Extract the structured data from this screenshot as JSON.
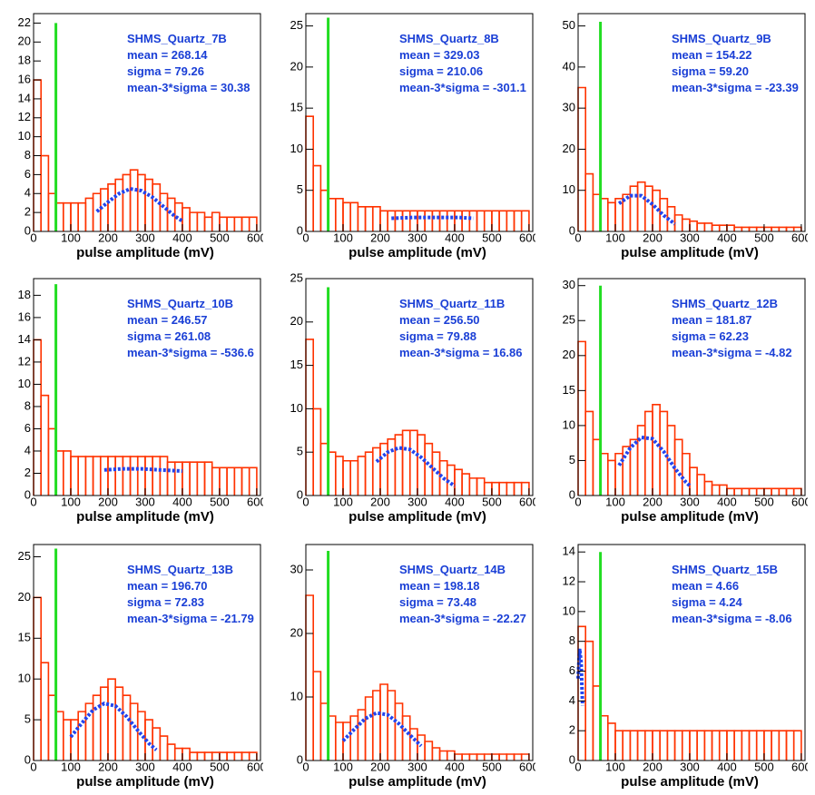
{
  "chart_data": [
    {
      "type": "histogram",
      "title": "SHMS_Quartz_7B",
      "annotations": [
        "mean = 268.14",
        "sigma = 79.26",
        "mean-3*sigma = 30.38"
      ],
      "xlabel": "pulse amplitude (mV)",
      "color": "#ff3300",
      "bins": [
        0,
        20,
        40,
        60,
        80,
        100,
        120,
        140,
        160,
        180,
        200,
        220,
        240,
        260,
        280,
        300,
        320,
        340,
        360,
        380,
        400,
        420,
        440,
        460,
        480,
        500,
        520,
        540,
        560,
        580,
        600
      ],
      "values": [
        16,
        8,
        4,
        3,
        3,
        3,
        3,
        3.5,
        4,
        4.5,
        5,
        5.5,
        6,
        6.5,
        6,
        5.5,
        5,
        4,
        3.5,
        3,
        2.5,
        2,
        2,
        1.5,
        2,
        1.5,
        1.5,
        1.5,
        1.5,
        1.5
      ],
      "fit": {
        "color": "#2244ee",
        "x": [
          170,
          200,
          230,
          260,
          290,
          320,
          350,
          380,
          400
        ],
        "values": [
          2.1,
          3.1,
          4.0,
          4.5,
          4.3,
          3.6,
          2.6,
          1.6,
          1.1
        ]
      },
      "threshold": {
        "color": "#22dd22",
        "x": 60,
        "y": 22
      },
      "xlim": [
        0,
        610
      ],
      "xticks": [
        0,
        100,
        200,
        300,
        400,
        500,
        600
      ],
      "ylim": [
        0,
        23
      ],
      "yticks": [
        0,
        2,
        4,
        6,
        8,
        10,
        12,
        14,
        16,
        18,
        20,
        22
      ]
    },
    {
      "type": "histogram",
      "title": "SHMS_Quartz_8B",
      "annotations": [
        "mean = 329.03",
        "sigma = 210.06",
        "mean-3*sigma = -301.1"
      ],
      "xlabel": "pulse amplitude (mV)",
      "color": "#ff3300",
      "bins": [
        0,
        20,
        40,
        60,
        80,
        100,
        120,
        140,
        160,
        180,
        200,
        220,
        240,
        260,
        280,
        300,
        320,
        340,
        360,
        380,
        400,
        420,
        440,
        460,
        480,
        500,
        520,
        540,
        560,
        580,
        600
      ],
      "values": [
        14,
        8,
        5,
        4,
        4,
        3.5,
        3.5,
        3,
        3,
        3,
        2.5,
        2.5,
        2.5,
        2.5,
        2.5,
        2.5,
        2.5,
        2.5,
        2.5,
        2.5,
        2.5,
        2.5,
        2.5,
        2.5,
        2.5,
        2.5,
        2.5,
        2.5,
        2.5,
        2.5
      ],
      "fit": {
        "color": "#2244ee",
        "x": [
          230,
          290,
          350,
          410,
          450
        ],
        "values": [
          1.6,
          1.7,
          1.7,
          1.7,
          1.6
        ]
      },
      "threshold": {
        "color": "#22dd22",
        "x": 60,
        "y": 26
      },
      "xlim": [
        0,
        610
      ],
      "xticks": [
        0,
        100,
        200,
        300,
        400,
        500,
        600
      ],
      "ylim": [
        0,
        26.5
      ],
      "yticks": [
        0,
        5,
        10,
        15,
        20,
        25
      ]
    },
    {
      "type": "histogram",
      "title": "SHMS_Quartz_9B",
      "annotations": [
        "mean = 154.22",
        "sigma = 59.20",
        "mean-3*sigma = -23.39"
      ],
      "xlabel": "pulse amplitude (mV)",
      "color": "#ff3300",
      "bins": [
        0,
        20,
        40,
        60,
        80,
        100,
        120,
        140,
        160,
        180,
        200,
        220,
        240,
        260,
        280,
        300,
        320,
        340,
        360,
        380,
        400,
        420,
        440,
        460,
        480,
        500,
        520,
        540,
        560,
        580,
        600
      ],
      "values": [
        35,
        14,
        9,
        8,
        7,
        8,
        9,
        11,
        12,
        11,
        10,
        8,
        6,
        4,
        3,
        2.5,
        2,
        2,
        1.5,
        1.5,
        1.5,
        1,
        1,
        1,
        1,
        1,
        1,
        1,
        1,
        1
      ],
      "fit": {
        "color": "#2244ee",
        "x": [
          110,
          140,
          170,
          200,
          230,
          260
        ],
        "values": [
          6.8,
          8.7,
          8.7,
          6.6,
          3.9,
          1.8
        ]
      },
      "threshold": {
        "color": "#22dd22",
        "x": 60,
        "y": 51
      },
      "xlim": [
        0,
        610
      ],
      "xticks": [
        0,
        100,
        200,
        300,
        400,
        500,
        600
      ],
      "ylim": [
        0,
        53
      ],
      "yticks": [
        0,
        10,
        20,
        30,
        40,
        50
      ]
    },
    {
      "type": "histogram",
      "title": "SHMS_Quartz_10B",
      "annotations": [
        "mean = 246.57",
        "sigma = 261.08",
        "mean-3*sigma = -536.6"
      ],
      "xlabel": "pulse amplitude (mV)",
      "color": "#ff3300",
      "bins": [
        0,
        20,
        40,
        60,
        80,
        100,
        120,
        140,
        160,
        180,
        200,
        220,
        240,
        260,
        280,
        300,
        320,
        340,
        360,
        380,
        400,
        420,
        440,
        460,
        480,
        500,
        520,
        540,
        560,
        580,
        600
      ],
      "values": [
        14,
        9,
        6,
        4,
        4,
        3.5,
        3.5,
        3.5,
        3.5,
        3.5,
        3.5,
        3.5,
        3.5,
        3.5,
        3.5,
        3.5,
        3.5,
        3.5,
        3,
        3,
        3,
        3,
        3,
        3,
        2.5,
        2.5,
        2.5,
        2.5,
        2.5,
        2.5
      ],
      "fit": {
        "color": "#2244ee",
        "x": [
          190,
          240,
          290,
          340,
          400
        ],
        "values": [
          2.3,
          2.4,
          2.4,
          2.3,
          2.2
        ]
      },
      "threshold": {
        "color": "#22dd22",
        "x": 60,
        "y": 19
      },
      "xlim": [
        0,
        610
      ],
      "xticks": [
        0,
        100,
        200,
        300,
        400,
        500,
        600
      ],
      "ylim": [
        0,
        19.5
      ],
      "yticks": [
        0,
        2,
        4,
        6,
        8,
        10,
        12,
        14,
        16,
        18
      ]
    },
    {
      "type": "histogram",
      "title": "SHMS_Quartz_11B",
      "annotations": [
        "mean = 256.50",
        "sigma = 79.88",
        "mean-3*sigma = 16.86"
      ],
      "xlabel": "pulse amplitude (mV)",
      "color": "#ff3300",
      "bins": [
        0,
        20,
        40,
        60,
        80,
        100,
        120,
        140,
        160,
        180,
        200,
        220,
        240,
        260,
        280,
        300,
        320,
        340,
        360,
        380,
        400,
        420,
        440,
        460,
        480,
        500,
        520,
        540,
        560,
        580,
        600
      ],
      "values": [
        18,
        10,
        6,
        5,
        4.5,
        4,
        4,
        4.5,
        5,
        5.5,
        6,
        6.5,
        7,
        7.5,
        7.5,
        7,
        6,
        5,
        4,
        3.5,
        3,
        2.5,
        2,
        2,
        1.5,
        1.5,
        1.5,
        1.5,
        1.5,
        1.5
      ],
      "fit": {
        "color": "#2244ee",
        "x": [
          190,
          220,
          250,
          280,
          310,
          340,
          370,
          400
        ],
        "values": [
          3.9,
          5.0,
          5.5,
          5.3,
          4.4,
          3.2,
          2.0,
          1.1
        ]
      },
      "threshold": {
        "color": "#22dd22",
        "x": 60,
        "y": 24
      },
      "xlim": [
        0,
        610
      ],
      "xticks": [
        0,
        100,
        200,
        300,
        400,
        500,
        600
      ],
      "ylim": [
        0,
        25
      ],
      "yticks": [
        0,
        5,
        10,
        15,
        20,
        25
      ]
    },
    {
      "type": "histogram",
      "title": "SHMS_Quartz_12B",
      "annotations": [
        "mean = 181.87",
        "sigma = 62.23",
        "mean-3*sigma = -4.82"
      ],
      "xlabel": "pulse amplitude (mV)",
      "color": "#ff3300",
      "bins": [
        0,
        20,
        40,
        60,
        80,
        100,
        120,
        140,
        160,
        180,
        200,
        220,
        240,
        260,
        280,
        300,
        320,
        340,
        360,
        380,
        400,
        420,
        440,
        460,
        480,
        500,
        520,
        540,
        560,
        580,
        600
      ],
      "values": [
        22,
        12,
        8,
        6,
        5,
        6,
        7,
        8,
        10,
        12,
        13,
        12,
        10,
        8,
        6,
        4,
        3,
        2,
        1.5,
        1.5,
        1,
        1,
        1,
        1,
        1,
        1,
        1,
        1,
        1,
        1
      ],
      "fit": {
        "color": "#2244ee",
        "x": [
          110,
          140,
          170,
          200,
          230,
          260,
          290,
          300
        ],
        "values": [
          4.3,
          6.8,
          8.3,
          8.1,
          6.3,
          3.9,
          1.9,
          1.4
        ]
      },
      "threshold": {
        "color": "#22dd22",
        "x": 60,
        "y": 30
      },
      "xlim": [
        0,
        610
      ],
      "xticks": [
        0,
        100,
        200,
        300,
        400,
        500,
        600
      ],
      "ylim": [
        0,
        31
      ],
      "yticks": [
        0,
        5,
        10,
        15,
        20,
        25,
        30
      ]
    },
    {
      "type": "histogram",
      "title": "SHMS_Quartz_13B",
      "annotations": [
        "mean = 196.70",
        "sigma = 72.83",
        "mean-3*sigma = -21.79"
      ],
      "xlabel": "pulse amplitude (mV)",
      "color": "#ff3300",
      "bins": [
        0,
        20,
        40,
        60,
        80,
        100,
        120,
        140,
        160,
        180,
        200,
        220,
        240,
        260,
        280,
        300,
        320,
        340,
        360,
        380,
        400,
        420,
        440,
        460,
        480,
        500,
        520,
        540,
        560,
        580,
        600
      ],
      "values": [
        20,
        12,
        8,
        6,
        5,
        5,
        6,
        7,
        8,
        9,
        10,
        9,
        8,
        7,
        6,
        5,
        4,
        3,
        2,
        1.5,
        1.5,
        1,
        1,
        1,
        1,
        1,
        1,
        1,
        1,
        1
      ],
      "fit": {
        "color": "#2244ee",
        "x": [
          100,
          130,
          160,
          190,
          220,
          250,
          280,
          310,
          330
        ],
        "values": [
          2.9,
          4.6,
          6.2,
          7.0,
          6.7,
          5.4,
          3.7,
          2.1,
          1.3
        ]
      },
      "threshold": {
        "color": "#22dd22",
        "x": 60,
        "y": 26
      },
      "xlim": [
        0,
        610
      ],
      "xticks": [
        0,
        100,
        200,
        300,
        400,
        500,
        600
      ],
      "ylim": [
        0,
        26.5
      ],
      "yticks": [
        0,
        5,
        10,
        15,
        20,
        25
      ]
    },
    {
      "type": "histogram",
      "title": "SHMS_Quartz_14B",
      "annotations": [
        "mean = 198.18",
        "sigma = 73.48",
        "mean-3*sigma = -22.27"
      ],
      "xlabel": "pulse amplitude (mV)",
      "color": "#ff3300",
      "bins": [
        0,
        20,
        40,
        60,
        80,
        100,
        120,
        140,
        160,
        180,
        200,
        220,
        240,
        260,
        280,
        300,
        320,
        340,
        360,
        380,
        400,
        420,
        440,
        460,
        480,
        500,
        520,
        540,
        560,
        580,
        600
      ],
      "values": [
        26,
        14,
        9,
        7,
        6,
        6,
        7,
        8,
        10,
        11,
        12,
        11,
        9,
        7,
        5,
        4,
        3,
        2,
        1.5,
        1.5,
        1,
        1,
        1,
        1,
        1,
        1,
        1,
        1,
        1,
        1
      ],
      "fit": {
        "color": "#2244ee",
        "x": [
          100,
          130,
          160,
          190,
          220,
          250,
          280,
          310
        ],
        "values": [
          3.1,
          4.9,
          6.6,
          7.5,
          7.2,
          5.8,
          4.0,
          2.3
        ]
      },
      "threshold": {
        "color": "#22dd22",
        "x": 60,
        "y": 33
      },
      "xlim": [
        0,
        610
      ],
      "xticks": [
        0,
        100,
        200,
        300,
        400,
        500,
        600
      ],
      "ylim": [
        0,
        34
      ],
      "yticks": [
        0,
        10,
        20,
        30
      ]
    },
    {
      "type": "histogram",
      "title": "SHMS_Quartz_15B",
      "annotations": [
        "mean = 4.66",
        "sigma = 4.24",
        "mean-3*sigma = -8.06"
      ],
      "xlabel": "pulse amplitude (mV)",
      "color": "#ff3300",
      "bins": [
        0,
        20,
        40,
        60,
        80,
        100,
        120,
        140,
        160,
        180,
        200,
        220,
        240,
        260,
        280,
        300,
        320,
        340,
        360,
        380,
        400,
        420,
        440,
        460,
        480,
        500,
        520,
        540,
        560,
        580,
        600
      ],
      "values": [
        9,
        8,
        5,
        3,
        2.5,
        2,
        2,
        2,
        2,
        2,
        2,
        2,
        2,
        2,
        2,
        2,
        2,
        2,
        2,
        2,
        2,
        2,
        2,
        2,
        2,
        2,
        2,
        2,
        2,
        2
      ],
      "fit": {
        "color": "#2244ee",
        "x": [
          0,
          4,
          8,
          12
        ],
        "values": [
          5.5,
          7.5,
          6.6,
          3.7
        ]
      },
      "threshold": {
        "color": "#22dd22",
        "x": 60,
        "y": 14
      },
      "xlim": [
        0,
        610
      ],
      "xticks": [
        0,
        100,
        200,
        300,
        400,
        500,
        600
      ],
      "ylim": [
        0,
        14.5
      ],
      "yticks": [
        0,
        2,
        4,
        6,
        8,
        10,
        12,
        14
      ]
    }
  ]
}
